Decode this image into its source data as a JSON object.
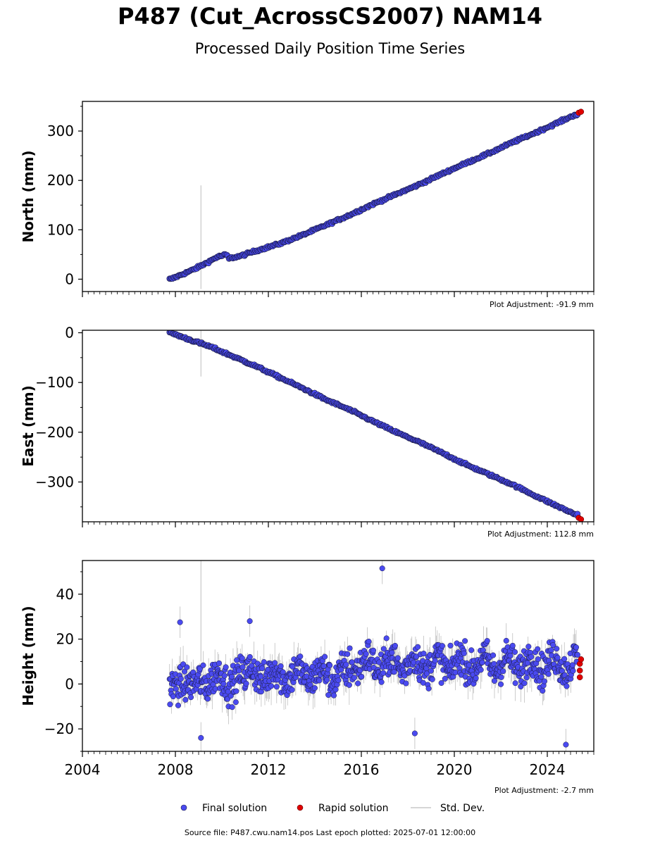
{
  "page": {
    "title": "P487 (Cut_AcrossCS2007) NAM14",
    "subtitle": "Processed Daily Position Time Series",
    "footer": "Source file: P487.cwu.nam14.pos  Last epoch plotted: 2025-07-01 12:00:00"
  },
  "legend": {
    "final_label": "Final solution",
    "rapid_label": "Rapid solution",
    "std_label": "Std. Dev."
  },
  "colors": {
    "final": "#4a4af0",
    "final_edge": "#1a1a40",
    "rapid": "#e00000",
    "stddev": "#c8c8c8"
  },
  "chart_data": [
    {
      "type": "scatter",
      "name": "north",
      "ylabel": "North (mm)",
      "adjustment_label": "Plot Adjustment: -91.9 mm",
      "xlim": [
        2004,
        2026
      ],
      "ylim": [
        -25,
        360
      ],
      "yticks": [
        0,
        100,
        200,
        300
      ],
      "ytick_labels": [
        "0",
        "100",
        "200",
        "300"
      ],
      "start": 2007.75,
      "end": 2025.5,
      "final_points": [
        [
          2007.8,
          0
        ],
        [
          2008.2,
          8
        ],
        [
          2008.8,
          20
        ],
        [
          2009.3,
          32
        ],
        [
          2009.8,
          45
        ],
        [
          2010.2,
          50
        ],
        [
          2010.3,
          42
        ],
        [
          2010.8,
          47
        ],
        [
          2011.5,
          58
        ],
        [
          2012.5,
          72
        ],
        [
          2013.5,
          90
        ],
        [
          2014.5,
          110
        ],
        [
          2015.5,
          130
        ],
        [
          2016.5,
          152
        ],
        [
          2017.5,
          172
        ],
        [
          2018.5,
          192
        ],
        [
          2019.5,
          214
        ],
        [
          2020.5,
          235
        ],
        [
          2021.5,
          255
        ],
        [
          2022.5,
          277
        ],
        [
          2023.5,
          297
        ],
        [
          2024.5,
          318
        ],
        [
          2025.2,
          333
        ]
      ],
      "rapid_points": [
        [
          2025.35,
          337
        ],
        [
          2025.45,
          339
        ]
      ],
      "stddev_spikes": [
        [
          2009.1,
          190,
          -20
        ]
      ]
    },
    {
      "type": "scatter",
      "name": "east",
      "ylabel": "East (mm)",
      "adjustment_label": "Plot Adjustment: 112.8 mm",
      "xlim": [
        2004,
        2026
      ],
      "ylim": [
        -380,
        5
      ],
      "yticks": [
        0,
        -100,
        -200,
        -300
      ],
      "ytick_labels": [
        "0",
        "−100",
        "−200",
        "−300"
      ],
      "start": 2007.75,
      "end": 2025.5,
      "final_points": [
        [
          2007.8,
          0
        ],
        [
          2008.5,
          -12
        ],
        [
          2009.5,
          -28
        ],
        [
          2010.5,
          -48
        ],
        [
          2011.5,
          -68
        ],
        [
          2012.5,
          -90
        ],
        [
          2013.5,
          -112
        ],
        [
          2014.5,
          -135
        ],
        [
          2015.5,
          -155
        ],
        [
          2016.5,
          -178
        ],
        [
          2017.5,
          -200
        ],
        [
          2018.5,
          -220
        ],
        [
          2019.5,
          -242
        ],
        [
          2020.5,
          -265
        ],
        [
          2021.5,
          -285
        ],
        [
          2022.5,
          -305
        ],
        [
          2023.5,
          -328
        ],
        [
          2024.5,
          -350
        ],
        [
          2025.2,
          -365
        ]
      ],
      "rapid_points": [
        [
          2025.35,
          -372
        ],
        [
          2025.45,
          -375
        ]
      ],
      "stddev_spikes": [
        [
          2009.1,
          5,
          -88
        ]
      ]
    },
    {
      "type": "scatter",
      "name": "height",
      "ylabel": "Height (mm)",
      "adjustment_label": "Plot Adjustment: -2.7 mm",
      "xlim": [
        2004,
        2026
      ],
      "ylim": [
        -30,
        55
      ],
      "yticks": [
        -20,
        0,
        20,
        40
      ],
      "ytick_labels": [
        "−20",
        "0",
        "20",
        "40"
      ],
      "xticks": [
        2004,
        2008,
        2012,
        2016,
        2020,
        2024
      ],
      "xtick_labels": [
        "2004",
        "2008",
        "2012",
        "2016",
        "2020",
        "2024"
      ],
      "start": 2007.75,
      "end": 2025.5,
      "outliers": [
        [
          2016.9,
          51.5
        ],
        [
          2018.3,
          -22
        ],
        [
          2009.1,
          -24
        ],
        [
          2024.8,
          -27
        ],
        [
          2008.2,
          27.5
        ],
        [
          2011.2,
          28
        ]
      ],
      "rapid_points": [
        [
          2025.4,
          3
        ],
        [
          2025.4,
          6
        ],
        [
          2025.4,
          9
        ],
        [
          2025.45,
          11
        ]
      ],
      "stddev_spikes": [
        [
          2009.1,
          55,
          10
        ]
      ]
    }
  ]
}
